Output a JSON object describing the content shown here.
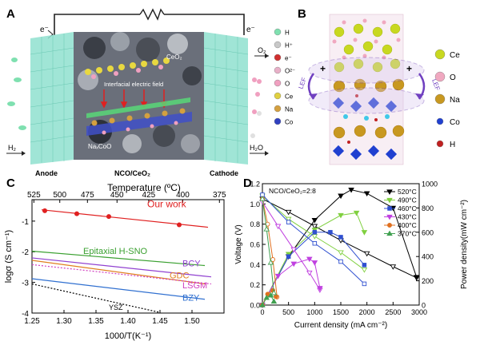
{
  "panels": {
    "A": {
      "letter": "A",
      "electron_left": "e⁻",
      "electron_right": "e⁻",
      "o2": "O₂",
      "h2": "H₂",
      "h2o": "H₂O",
      "ceo2": "CeO₂",
      "interfacial": "Interfacial electric field",
      "naxcoo": "NaₓCoO",
      "anode": "Anode",
      "middle": "NCO/CeO₂",
      "cathode": "Cathode",
      "legend": [
        {
          "label": "H",
          "color": "#7fe0b0"
        },
        {
          "label": "H⁺",
          "color": "#c8c8c8"
        },
        {
          "label": "e⁻",
          "color": "#d03030"
        },
        {
          "label": "O²⁻",
          "color": "#e8b0c8"
        },
        {
          "label": "O",
          "color": "#f0a0c0"
        },
        {
          "label": "Ce",
          "color": "#e0d040"
        },
        {
          "label": "Na",
          "color": "#d4a040"
        },
        {
          "label": "Co",
          "color": "#3040c0"
        }
      ]
    },
    "B": {
      "letter": "B",
      "lef_left": "LEF",
      "lef_right": "LEF",
      "plus_left": "+",
      "plus_right": "+",
      "legend": [
        {
          "label": "Ce",
          "color": "#c8d820"
        },
        {
          "label": "O",
          "color": "#f0a8c0"
        },
        {
          "label": "Na",
          "color": "#c89820"
        },
        {
          "label": "Co",
          "color": "#2040d0"
        },
        {
          "label": "H",
          "color": "#c02020"
        }
      ]
    },
    "C": {
      "letter": "C"
    },
    "D": {
      "letter": "D"
    }
  },
  "chart_data": [
    {
      "type": "line",
      "panel": "C",
      "xlabel": "1000/T(K⁻¹)",
      "ylabel": "logσ (S cm⁻¹)",
      "top_axis_label": "Temperature (ºC)",
      "xlim": [
        1.25,
        1.55
      ],
      "ylim": [
        -4,
        -0.3
      ],
      "x_ticks": [
        "1.25",
        "1.30",
        "1.35",
        "1.40",
        "1.45",
        "1.50"
      ],
      "y_ticks": [
        "-1",
        "-2",
        "-3",
        "-4"
      ],
      "top_ticks": [
        "525",
        "500",
        "475",
        "450",
        "425",
        "400",
        "375"
      ],
      "series": [
        {
          "name": "Our work",
          "color": "#e02020",
          "dash": "",
          "markers": true,
          "points": [
            [
              1.27,
              -0.66
            ],
            [
              1.32,
              -0.76
            ],
            [
              1.37,
              -0.85
            ],
            [
              1.48,
              -1.12
            ]
          ],
          "line": [
            [
              1.265,
              -0.63
            ],
            [
              1.525,
              -1.2
            ]
          ]
        },
        {
          "name": "Epitaxial H-SNO",
          "color": "#3aa030",
          "dash": "",
          "markers": false,
          "line": [
            [
              1.25,
              -1.98
            ],
            [
              1.52,
              -2.45
            ]
          ]
        },
        {
          "name": "BCY",
          "color": "#9040d0",
          "dash": "",
          "markers": false,
          "line": [
            [
              1.25,
              -2.2
            ],
            [
              1.53,
              -2.82
            ]
          ]
        },
        {
          "name": "GDC",
          "color": "#e08020",
          "dash": "",
          "markers": false,
          "line": [
            [
              1.25,
              -2.28
            ],
            [
              1.52,
              -3.05
            ]
          ]
        },
        {
          "name": "LSGM",
          "color": "#d040c0",
          "dash": "2,2",
          "markers": false,
          "line": [
            [
              1.25,
              -2.42
            ],
            [
              1.53,
              -3.05
            ]
          ]
        },
        {
          "name": "BZY",
          "color": "#3070d0",
          "dash": "",
          "markers": false,
          "line": [
            [
              1.25,
              -2.88
            ],
            [
              1.52,
              -3.55
            ]
          ]
        },
        {
          "name": "YSZ",
          "color": "#000000",
          "dash": "2,2",
          "markers": false,
          "line": [
            [
              1.25,
              -3.05
            ],
            [
              1.45,
              -3.98
            ]
          ]
        }
      ]
    },
    {
      "type": "line",
      "panel": "D",
      "annotation": "NCO/CeO₂=2:8",
      "xlabel": "Current density (mA cm⁻²)",
      "ylabel": "Voltage (V)",
      "y2label": "Power density(mW cm⁻²)",
      "xlim": [
        0,
        3000
      ],
      "ylim": [
        0,
        1.2
      ],
      "y2lim": [
        0,
        1000
      ],
      "x_ticks": [
        "0",
        "500",
        "1000",
        "1500",
        "2000",
        "2500",
        "3000"
      ],
      "y_ticks": [
        "0.0",
        "0.2",
        "0.4",
        "0.6",
        "0.8",
        "1.0",
        "1.2"
      ],
      "y2_ticks": [
        "0",
        "200",
        "400",
        "600",
        "800",
        "1000"
      ],
      "series": [
        {
          "name": "520°C",
          "color": "#000000",
          "marker": "tri-down",
          "voltage": [
            [
              0,
              1.05
            ],
            [
              500,
              0.92
            ],
            [
              1000,
              0.78
            ],
            [
              1500,
              0.64
            ],
            [
              2000,
              0.51
            ],
            [
              2500,
              0.38
            ],
            [
              2950,
              0.27
            ]
          ],
          "power": [
            [
              0,
              0
            ],
            [
              500,
              400
            ],
            [
              1000,
              700
            ],
            [
              1500,
              900
            ],
            [
              1700,
              950
            ],
            [
              2000,
              920
            ],
            [
              2500,
              800
            ],
            [
              2950,
              230
            ]
          ]
        },
        {
          "name": "490°C",
          "color": "#80d040",
          "marker": "tri-down",
          "voltage": [
            [
              0,
              1.08
            ],
            [
              500,
              0.85
            ],
            [
              1000,
              0.68
            ],
            [
              1500,
              0.52
            ],
            [
              1950,
              0.35
            ]
          ],
          "power": [
            [
              0,
              0
            ],
            [
              500,
              420
            ],
            [
              1000,
              620
            ],
            [
              1500,
              740
            ],
            [
              1800,
              760
            ],
            [
              1950,
              600
            ]
          ]
        },
        {
          "name": "460°C",
          "color": "#3050d0",
          "marker": "square",
          "voltage": [
            [
              0,
              1.09
            ],
            [
              500,
              0.82
            ],
            [
              1000,
              0.61
            ],
            [
              1500,
              0.43
            ],
            [
              1950,
              0.21
            ]
          ],
          "power": [
            [
              0,
              0
            ],
            [
              500,
              400
            ],
            [
              1000,
              600
            ],
            [
              1300,
              600
            ],
            [
              1500,
              560
            ],
            [
              1950,
              330
            ]
          ]
        },
        {
          "name": "430°C",
          "color": "#c040e0",
          "marker": "tri-down",
          "voltage": [
            [
              0,
              1.02
            ],
            [
              300,
              0.78
            ],
            [
              600,
              0.55
            ],
            [
              900,
              0.32
            ],
            [
              1100,
              0.15
            ]
          ],
          "power": [
            [
              0,
              0
            ],
            [
              300,
              240
            ],
            [
              600,
              340
            ],
            [
              900,
              380
            ],
            [
              1000,
              350
            ],
            [
              1100,
              140
            ]
          ]
        },
        {
          "name": "400°C",
          "color": "#e07020",
          "marker": "circle",
          "voltage": [
            [
              0,
              1.05
            ],
            [
              100,
              0.8
            ],
            [
              200,
              0.45
            ],
            [
              280,
              0.08
            ]
          ],
          "power": [
            [
              0,
              0
            ],
            [
              100,
              90
            ],
            [
              200,
              120
            ],
            [
              260,
              70
            ]
          ]
        },
        {
          "name": "370°C",
          "color": "#40a050",
          "marker": "tri-up",
          "voltage": [
            [
              0,
              1.05
            ],
            [
              80,
              0.75
            ],
            [
              160,
              0.42
            ],
            [
              220,
              0.12
            ]
          ],
          "power": [
            [
              0,
              0
            ],
            [
              80,
              60
            ],
            [
              160,
              80
            ],
            [
              220,
              30
            ]
          ]
        }
      ]
    }
  ]
}
